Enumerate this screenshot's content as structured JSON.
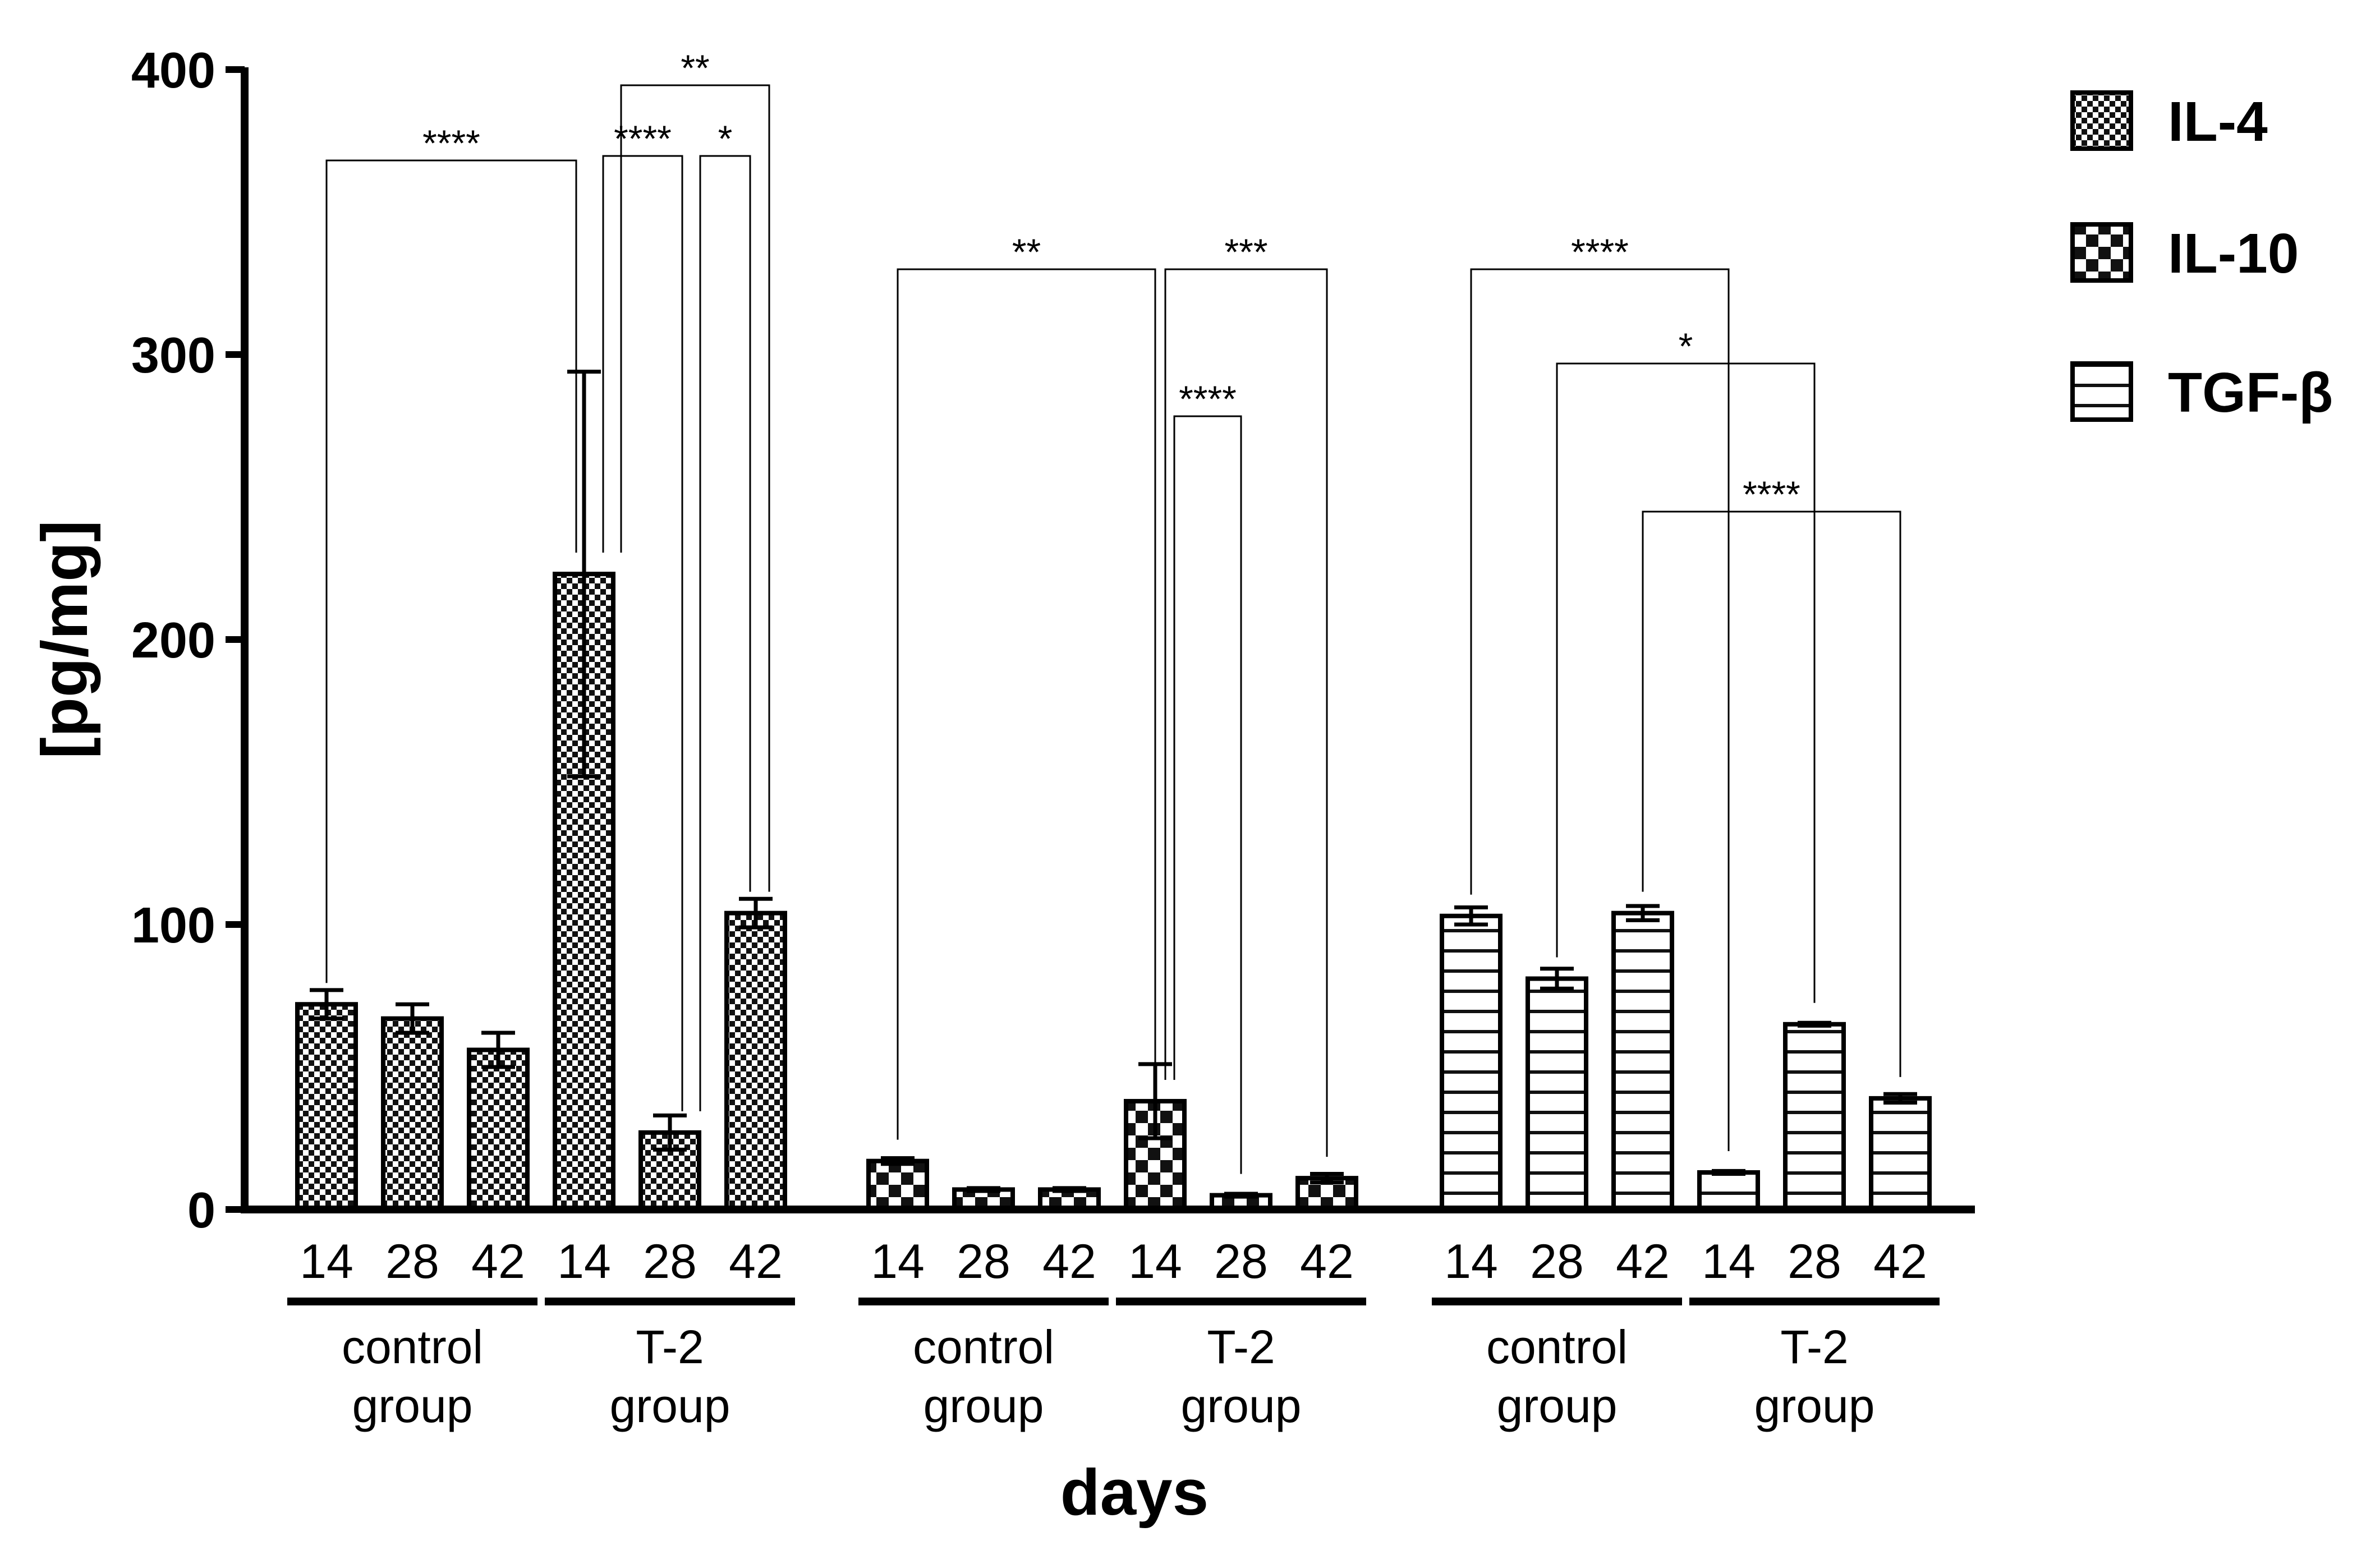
{
  "chart_data": {
    "type": "bar",
    "title": "",
    "xlabel": "days",
    "ylabel": "[pg/mg]",
    "ylim": [
      0,
      400
    ],
    "yticks": [
      "0",
      "100",
      "200",
      "300",
      "400"
    ],
    "grid": false,
    "legend_position": "top-right",
    "series": [
      {
        "name": "IL-4",
        "pattern": "fine-checker",
        "groups": [
          {
            "name": "control group",
            "line1": "control",
            "line2": "group",
            "categories": [
              "14",
              "28",
              "42"
            ],
            "values": [
              72,
              67,
              56
            ],
            "errors": [
              5,
              5,
              6
            ]
          },
          {
            "name": "T-2 group",
            "line1": "T-2",
            "line2": "group",
            "categories": [
              "14",
              "28",
              "42"
            ],
            "values": [
              223,
              27,
              104
            ],
            "errors": [
              71,
              6,
              5
            ]
          }
        ]
      },
      {
        "name": "IL-10",
        "pattern": "coarse-checker",
        "groups": [
          {
            "name": "control group",
            "line1": "control",
            "line2": "group",
            "categories": [
              "14",
              "28",
              "42"
            ],
            "values": [
              17,
              7,
              7
            ],
            "errors": [
              1,
              0.5,
              0.5
            ]
          },
          {
            "name": "T-2 group",
            "line1": "T-2",
            "line2": "group",
            "categories": [
              "14",
              "28",
              "42"
            ],
            "values": [
              38,
              5,
              11
            ],
            "errors": [
              13,
              0.5,
              1.5
            ]
          }
        ]
      },
      {
        "name": "TGF-β",
        "pattern": "horizontal-stripes",
        "groups": [
          {
            "name": "control group",
            "line1": "control",
            "line2": "group",
            "categories": [
              "14",
              "28",
              "42"
            ],
            "values": [
              103,
              81,
              104
            ],
            "errors": [
              3,
              3.5,
              2.5
            ]
          },
          {
            "name": "T-2 group",
            "line1": "T-2",
            "line2": "group",
            "categories": [
              "14",
              "28",
              "42"
            ],
            "values": [
              13,
              65,
              39
            ],
            "errors": [
              0.5,
              0.5,
              1.5
            ]
          }
        ]
      }
    ],
    "significance": [
      {
        "series": 0,
        "from": [
          0,
          0
        ],
        "to": [
          1,
          0
        ],
        "label": "****"
      },
      {
        "series": 0,
        "from": [
          1,
          0
        ],
        "to": [
          1,
          2
        ],
        "label": "**"
      },
      {
        "series": 0,
        "from": [
          1,
          0
        ],
        "to": [
          1,
          1
        ],
        "label": "****"
      },
      {
        "series": 0,
        "from": [
          1,
          1
        ],
        "to": [
          1,
          2
        ],
        "label": "*"
      },
      {
        "series": 1,
        "from": [
          0,
          0
        ],
        "to": [
          1,
          0
        ],
        "label": "**"
      },
      {
        "series": 1,
        "from": [
          1,
          0
        ],
        "to": [
          1,
          2
        ],
        "label": "***"
      },
      {
        "series": 1,
        "from": [
          1,
          0
        ],
        "to": [
          1,
          1
        ],
        "label": "****"
      },
      {
        "series": 2,
        "from": [
          0,
          0
        ],
        "to": [
          1,
          0
        ],
        "label": "****"
      },
      {
        "series": 2,
        "from": [
          0,
          1
        ],
        "to": [
          1,
          1
        ],
        "label": "*"
      },
      {
        "series": 2,
        "from": [
          0,
          2
        ],
        "to": [
          1,
          2
        ],
        "label": "****"
      }
    ]
  }
}
